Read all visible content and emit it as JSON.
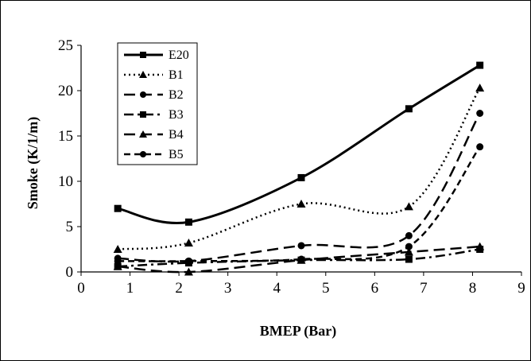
{
  "chart_data": {
    "type": "line",
    "title": "",
    "xlabel": "BMEP (Bar)",
    "ylabel": "Smoke (K/1/m)",
    "xlim": [
      0,
      9
    ],
    "ylim": [
      0,
      25
    ],
    "xticks": [
      0,
      1,
      2,
      3,
      4,
      5,
      6,
      7,
      8,
      9
    ],
    "yticks": [
      0,
      5,
      10,
      15,
      20,
      25
    ],
    "grid": false,
    "legend_position": "top-left",
    "x": [
      0.75,
      2.2,
      4.5,
      6.7,
      8.15
    ],
    "series": [
      {
        "name": "E20",
        "values": [
          7.0,
          5.5,
          10.4,
          18.0,
          22.8
        ],
        "color": "#000000",
        "style": "solid",
        "marker": "square"
      },
      {
        "name": "B1",
        "values": [
          2.5,
          3.2,
          7.5,
          7.2,
          20.3
        ],
        "color": "#000000",
        "style": "dotted",
        "marker": "triangle"
      },
      {
        "name": "B2",
        "values": [
          1.5,
          1.2,
          2.9,
          4.0,
          17.5
        ],
        "color": "#000000",
        "style": "longdash",
        "marker": "circle"
      },
      {
        "name": "B3",
        "values": [
          0.6,
          1.0,
          1.3,
          1.4,
          2.5
        ],
        "color": "#000000",
        "style": "dashdot",
        "marker": "square"
      },
      {
        "name": "B4",
        "values": [
          0.6,
          0.0,
          1.3,
          2.2,
          2.8
        ],
        "color": "#000000",
        "style": "longdash",
        "marker": "triangle"
      },
      {
        "name": "B5",
        "values": [
          1.2,
          1.2,
          1.4,
          2.8,
          13.8
        ],
        "color": "#000000",
        "style": "dash",
        "marker": "circle"
      }
    ]
  }
}
